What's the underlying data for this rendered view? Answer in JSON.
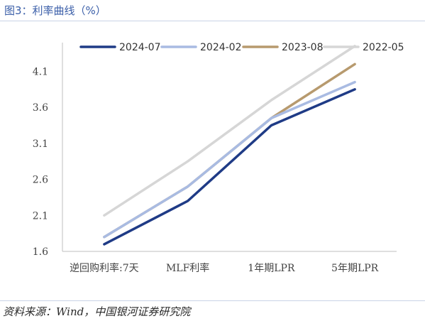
{
  "header": {
    "title": "图3：利率曲线（%）"
  },
  "footer": {
    "source": "资料来源：Wind，中国银河证券研究院"
  },
  "chart_data": {
    "type": "line",
    "title": "利率曲线（%）",
    "xlabel": "",
    "ylabel": "",
    "categories": [
      "逆回购利率:7天",
      "MLF利率",
      "1年期LPR",
      "5年期LPR"
    ],
    "ylim": [
      1.6,
      4.4
    ],
    "yticks": [
      "1.6",
      "2.1",
      "2.6",
      "3.1",
      "3.6",
      "4.1"
    ],
    "grid": false,
    "legend_position": "top",
    "series": [
      {
        "name": "2024-07",
        "color": "#1f3b86",
        "values": [
          1.7,
          2.3,
          3.35,
          3.85
        ]
      },
      {
        "name": "2024-02",
        "color": "#a9bbe2",
        "values": [
          1.8,
          2.5,
          3.45,
          3.95
        ]
      },
      {
        "name": "2023-08",
        "color": "#b79a6e",
        "values": [
          1.8,
          2.5,
          3.45,
          4.2
        ]
      },
      {
        "name": "2022-05",
        "color": "#d6d6d6",
        "values": [
          2.1,
          2.85,
          3.7,
          4.45
        ]
      }
    ]
  }
}
